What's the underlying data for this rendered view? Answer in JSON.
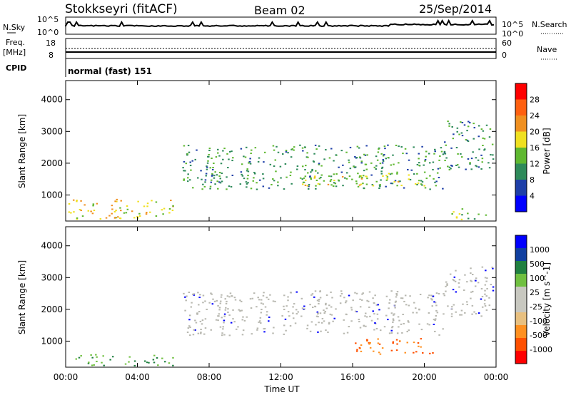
{
  "header": {
    "station": "Stokkseyri (fitACF)",
    "beam": "Beam 02",
    "date": "25/Sep/2014"
  },
  "top_panels": {
    "nsky_label": "N.Sky",
    "nsky_ticks": [
      "10^5",
      "10^0"
    ],
    "nsearch_label": "N.Search",
    "nsearch_ticks": [
      "10^5",
      "10^0"
    ],
    "freq_label": "Freq.",
    "freq_unit": "[MHz]",
    "freq_ticks": [
      "18",
      "8"
    ],
    "nave_label": "Nave",
    "nave_ticks": [
      "60",
      "0"
    ],
    "cpid_label": "CPID",
    "cpid_value": "normal (fast) 151"
  },
  "x_axis": {
    "label": "Time UT",
    "ticks": [
      "00:00",
      "04:00",
      "08:00",
      "12:00",
      "16:00",
      "20:00",
      "00:00"
    ],
    "range_hours": [
      0,
      24
    ]
  },
  "colors": {
    "power_scale": [
      "#0000ff",
      "#1e3fa8",
      "#2e8a5a",
      "#5fb830",
      "#f0e020",
      "#f09020",
      "#ff6010",
      "#ff0000"
    ],
    "velocity_scale": [
      "#ff0000",
      "#ff5000",
      "#ff9020",
      "#e8c080",
      "#c8c8c0",
      "#c8c8c0",
      "#70c040",
      "#208040",
      "#103fa0",
      "#0000ff"
    ],
    "ground_scatter": "#b8b8b0"
  },
  "chart_data": [
    {
      "type": "heatmap",
      "name_panel": "power",
      "ylabel": "Slant Range [km]",
      "xlabel": "",
      "yticks": [
        "1000",
        "2000",
        "3000",
        "4000"
      ],
      "ylim": [
        180,
        4600
      ],
      "colorbar": {
        "label": "Power [dB]",
        "ticks": [
          "4",
          "8",
          "12",
          "16",
          "20",
          "24",
          "28"
        ],
        "range": [
          0,
          30
        ]
      },
      "echo_regions": [
        {
          "t": [
            0.1,
            6.0
          ],
          "r": [
            250,
            900
          ],
          "level": 18
        },
        {
          "t": [
            6.5,
            21.0
          ],
          "r": [
            1200,
            2600
          ],
          "level": 10
        },
        {
          "t": [
            13.0,
            20.0
          ],
          "r": [
            1300,
            1700
          ],
          "level": 16
        },
        {
          "t": [
            21.0,
            23.8
          ],
          "r": [
            1800,
            3400
          ],
          "level": 8
        },
        {
          "t": [
            21.5,
            23.5
          ],
          "r": [
            250,
            600
          ],
          "level": 14
        }
      ]
    },
    {
      "type": "heatmap",
      "name_panel": "velocity",
      "ylabel": "Slant Range [km]",
      "xlabel": "Time UT",
      "yticks": [
        "1000",
        "2000",
        "3000",
        "4000"
      ],
      "ylim": [
        180,
        4600
      ],
      "colorbar": {
        "label": "Velocity [m s^-1]",
        "ticks": [
          "1000",
          "500",
          "100",
          "25",
          "-25",
          "-100",
          "-500",
          "-1000"
        ],
        "range": [
          -1200,
          1200
        ]
      },
      "echo_regions": [
        {
          "t": [
            0.5,
            6.0
          ],
          "r": [
            250,
            600
          ],
          "level": 300
        },
        {
          "t": [
            6.5,
            21.0
          ],
          "r": [
            1200,
            2600
          ],
          "level": 0
        },
        {
          "t": [
            16.0,
            20.5
          ],
          "r": [
            600,
            1100
          ],
          "level": -300
        },
        {
          "t": [
            21.0,
            23.8
          ],
          "r": [
            1800,
            3400
          ],
          "level": 0
        }
      ]
    }
  ]
}
